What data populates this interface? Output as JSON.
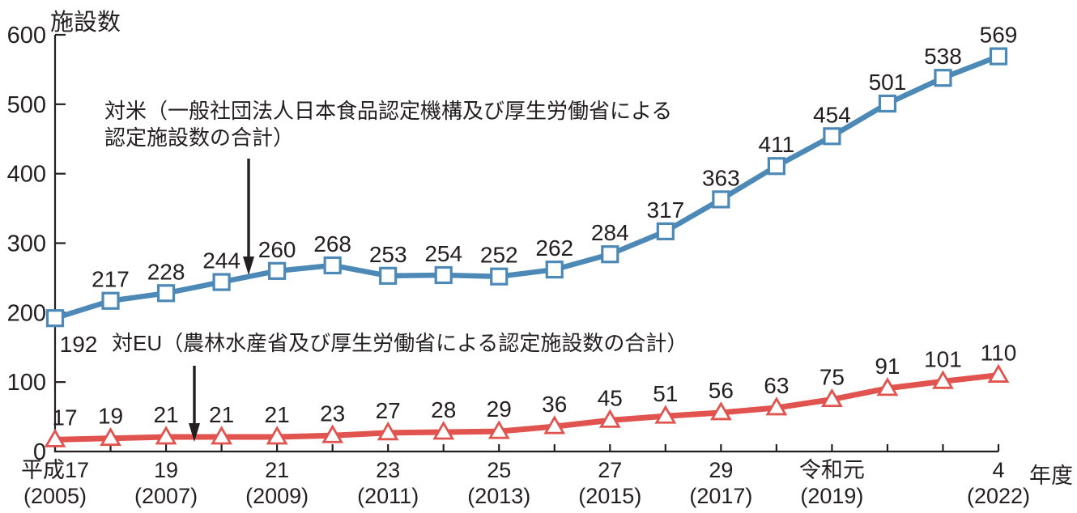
{
  "labels": {
    "y_axis_title": "施設数",
    "x_axis_unit": "年度",
    "us_note_line1": "対米（一般社団法人日本食品認定機構及び厚生労働省による",
    "us_note_line2": "認定施設数の合計）",
    "eu_note": "対EU（農林水産省及び厚生労働省による認定施設数の合計）"
  },
  "colors": {
    "us_line": "#4C89B7",
    "eu_line": "#E1534E",
    "axis": "#231f20",
    "text": "#231f20",
    "background": "#ffffff"
  },
  "chart_data": {
    "type": "line",
    "title": "",
    "ylabel": "施設数",
    "xlabel": "年度",
    "ylim": [
      0,
      600
    ],
    "yticks": [
      0,
      100,
      200,
      300,
      400,
      500,
      600
    ],
    "grid": false,
    "legend_position": "in-plot annotations with arrows",
    "x_fiscal_years": [
      2005,
      2006,
      2007,
      2008,
      2009,
      2010,
      2011,
      2012,
      2013,
      2014,
      2015,
      2016,
      2017,
      2018,
      2019,
      2020,
      2021,
      2022
    ],
    "x_tick_labels": [
      {
        "index": 0,
        "era_label": "平成17",
        "western_label": "(2005)"
      },
      {
        "index": 2,
        "era_label": "19",
        "western_label": "(2007)"
      },
      {
        "index": 4,
        "era_label": "21",
        "western_label": "(2009)"
      },
      {
        "index": 6,
        "era_label": "23",
        "western_label": "(2011)"
      },
      {
        "index": 8,
        "era_label": "25",
        "western_label": "(2013)"
      },
      {
        "index": 10,
        "era_label": "27",
        "western_label": "(2015)"
      },
      {
        "index": 12,
        "era_label": "29",
        "western_label": "(2017)"
      },
      {
        "index": 14,
        "era_label": "令和元",
        "western_label": "(2019)"
      },
      {
        "index": 17,
        "era_label": "4",
        "western_label": "(2022)"
      }
    ],
    "series": [
      {
        "name": "対米",
        "annotation": "対米（一般社団法人日本食品認定機構及び厚生労働省による認定施設数の合計）",
        "marker": "square",
        "color": "#4C89B7",
        "values": [
          192,
          217,
          228,
          244,
          260,
          268,
          253,
          254,
          252,
          262,
          284,
          317,
          363,
          411,
          454,
          501,
          538,
          569
        ]
      },
      {
        "name": "対EU",
        "annotation": "対EU（農林水産省及び厚生労働省による認定施設数の合計）",
        "marker": "triangle",
        "color": "#E1534E",
        "values": [
          17,
          19,
          21,
          21,
          21,
          23,
          27,
          28,
          29,
          36,
          45,
          51,
          56,
          63,
          75,
          91,
          101,
          110
        ]
      }
    ]
  }
}
